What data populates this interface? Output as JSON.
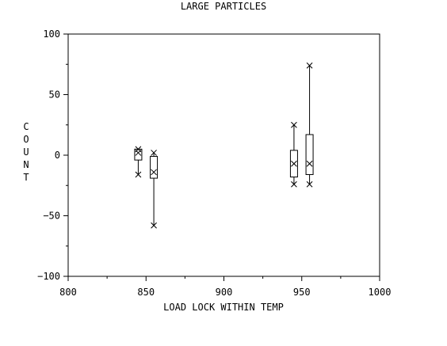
{
  "chart_data": {
    "type": "box",
    "title": "LARGE PARTICLES",
    "xlabel": "LOAD LOCK WITHIN TEMP",
    "ylabel": "COUNT",
    "xlim": [
      800,
      1000
    ],
    "ylim": [
      -100,
      100
    ],
    "xticks": [
      800,
      850,
      900,
      950,
      1000
    ],
    "yticks": [
      -100,
      -50,
      0,
      50,
      100
    ],
    "grid": false,
    "boxes": [
      {
        "x": 845,
        "q1": -4,
        "q3": 5,
        "median": 2,
        "min": -16,
        "max": 5,
        "markers": [
          5,
          2,
          -16
        ]
      },
      {
        "x": 855,
        "q1": -19,
        "q3": -1,
        "median": -14,
        "min": -58,
        "max": 2,
        "markers": [
          2,
          -14,
          -58
        ]
      },
      {
        "x": 945,
        "q1": -18,
        "q3": 4,
        "median": -7,
        "min": -24,
        "max": 25,
        "markers": [
          25,
          -7,
          -24
        ]
      },
      {
        "x": 955,
        "q1": -16,
        "q3": 17,
        "median": -7,
        "min": -24,
        "max": 74,
        "markers": [
          74,
          -7,
          -24
        ]
      }
    ]
  }
}
